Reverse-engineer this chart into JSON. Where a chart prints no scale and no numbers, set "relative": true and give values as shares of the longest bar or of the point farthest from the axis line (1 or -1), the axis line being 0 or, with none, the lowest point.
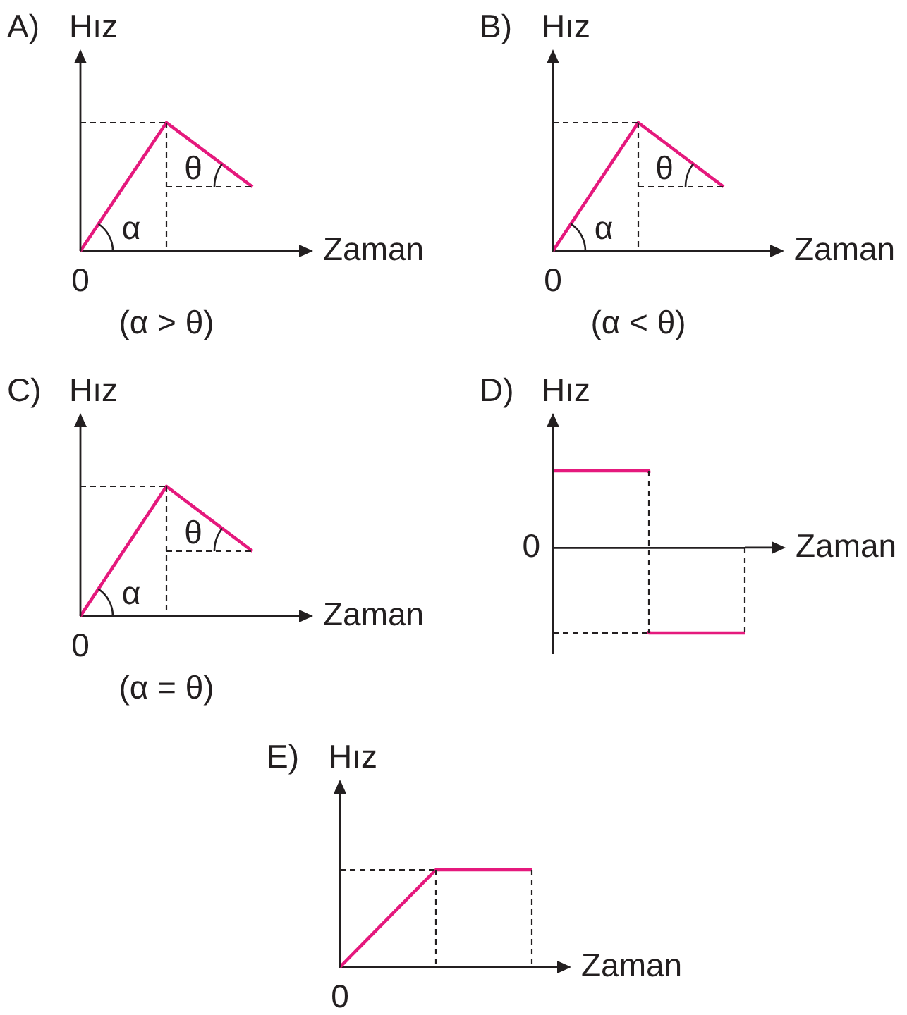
{
  "chart_data": [
    {
      "type": "line",
      "title": "A)",
      "ylabel": "Hız",
      "xlabel": "Zaman",
      "categories": [
        null,
        null,
        null
      ],
      "relative": true,
      "series": [
        {
          "color": "#e5197d",
          "values": [
            0,
            1,
            0.5
          ]
        }
      ],
      "annotations": [
        "0",
        "α",
        "θ",
        "(α > θ)"
      ]
    },
    {
      "type": "line",
      "title": "B)",
      "ylabel": "Hız",
      "xlabel": "Zaman",
      "categories": [
        null,
        null,
        null
      ],
      "relative": true,
      "series": [
        {
          "color": "#e5197d",
          "values": [
            0,
            1,
            0.5
          ]
        }
      ],
      "annotations": [
        "0",
        "α",
        "θ",
        "(α < θ)"
      ]
    },
    {
      "type": "line",
      "title": "C)",
      "ylabel": "Hız",
      "xlabel": "Zaman",
      "categories": [
        null,
        null,
        null
      ],
      "relative": true,
      "series": [
        {
          "color": "#e5197d",
          "values": [
            0,
            1,
            0.5
          ]
        }
      ],
      "annotations": [
        "0",
        "α",
        "θ",
        "(α = θ)"
      ]
    },
    {
      "type": "step",
      "title": "D)",
      "ylabel": "Hız",
      "xlabel": "Zaman",
      "categories": [
        null,
        null,
        null
      ],
      "relative": true,
      "series": [
        {
          "color": "#e5197d",
          "values": [
            0.9,
            -1,
            -1
          ]
        }
      ],
      "annotations": [
        "0"
      ]
    },
    {
      "type": "line",
      "title": "E)",
      "ylabel": "Hız",
      "xlabel": "Zaman",
      "categories": [
        null,
        null,
        null
      ],
      "relative": true,
      "series": [
        {
          "color": "#e5197d",
          "values": [
            0,
            1,
            1
          ]
        }
      ],
      "annotations": [
        "0"
      ]
    }
  ]
}
